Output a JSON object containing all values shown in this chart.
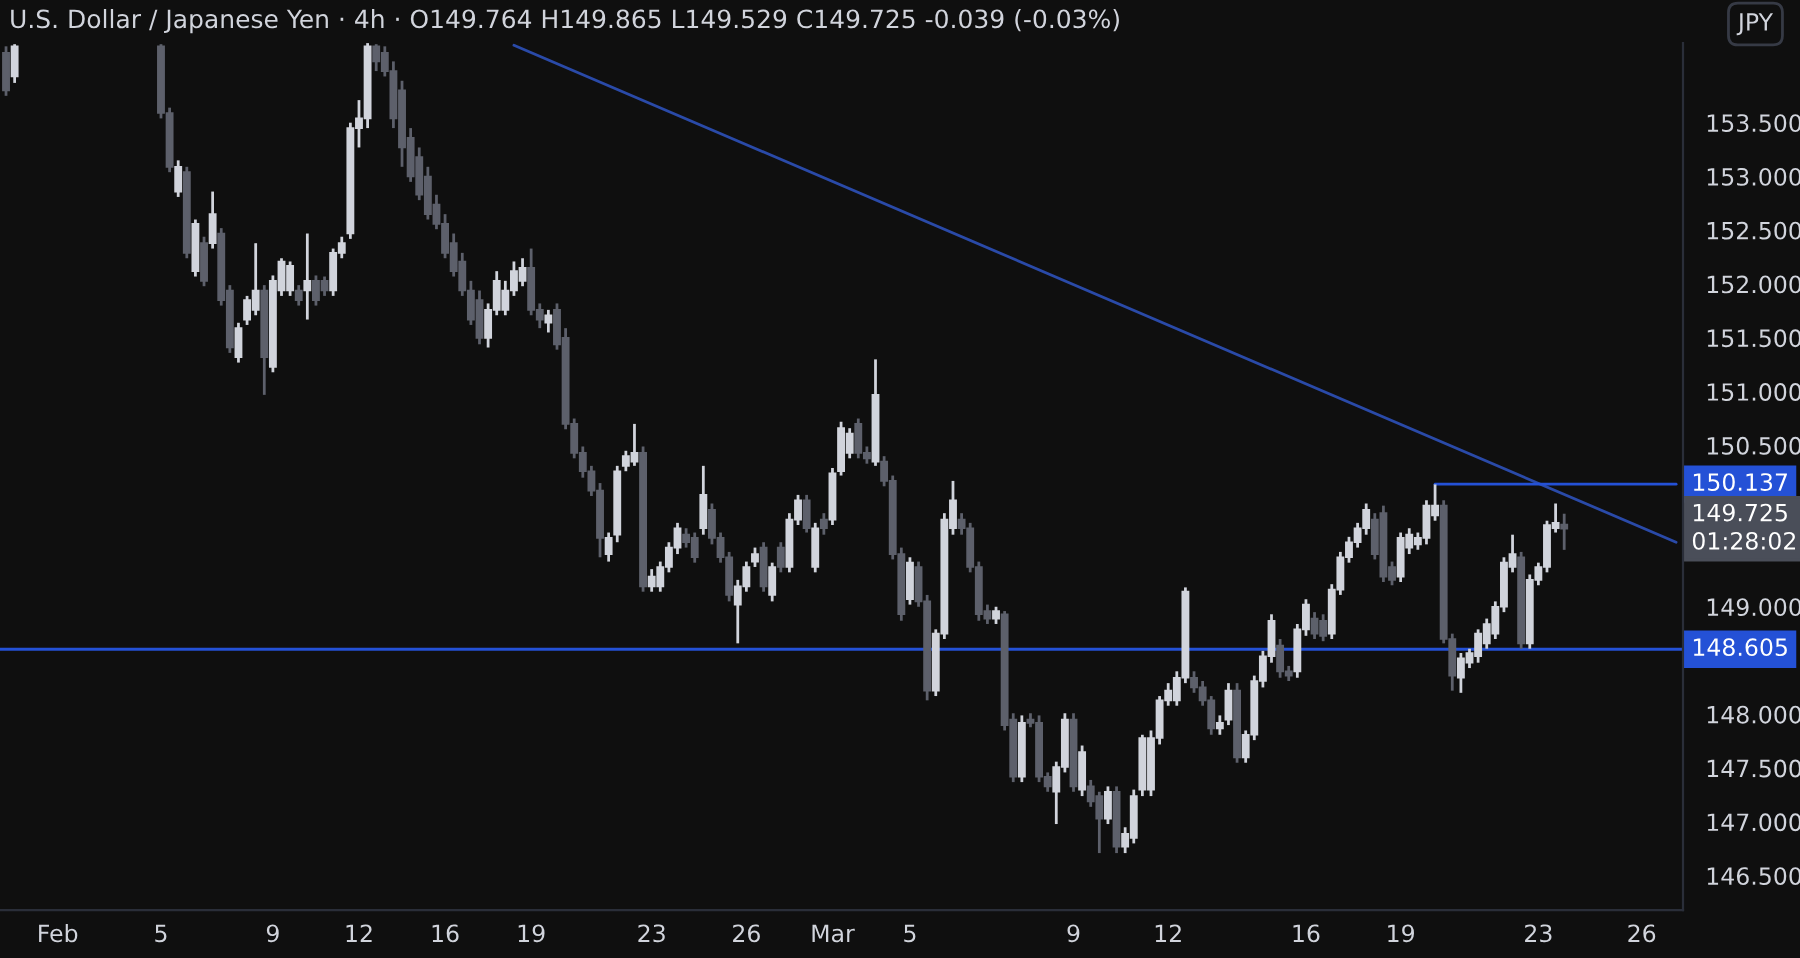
{
  "chart_data": {
    "type": "candlestick",
    "title": "U.S. Dollar / Japanese Yen · 4h · O149.764 H149.865 L149.529 C149.725 -0.039 (-0.03%)",
    "categories": [
      null,
      null,
      null,
      null,
      null,
      null,
      "Feb",
      null,
      null,
      null,
      null,
      null,
      null,
      null,
      null,
      null,
      null,
      null,
      "5",
      null,
      null,
      null,
      null,
      null,
      null,
      null,
      null,
      null,
      null,
      null,
      null,
      "9",
      null,
      null,
      null,
      null,
      null,
      null,
      null,
      null,
      null,
      "12",
      null,
      null,
      null,
      null,
      null,
      null,
      null,
      null,
      null,
      "16",
      null,
      null,
      null,
      null,
      null,
      null,
      null,
      null,
      null,
      "19",
      null,
      null,
      null,
      null,
      null,
      null,
      null,
      null,
      null,
      null,
      null,
      null,
      null,
      "23",
      null,
      null,
      null,
      null,
      null,
      null,
      null,
      null,
      null,
      null,
      "26",
      null,
      null,
      null,
      null,
      null,
      null,
      null,
      null,
      null,
      "Mar",
      null,
      null,
      null,
      null,
      null,
      null,
      null,
      null,
      "5",
      null,
      null,
      null,
      null,
      null,
      null,
      null,
      null,
      null,
      null,
      null,
      null,
      null,
      null,
      null,
      null,
      null,
      null,
      "9",
      null,
      null,
      null,
      null,
      null,
      null,
      null,
      null,
      null,
      null,
      "12",
      null,
      null,
      null,
      null,
      null,
      null,
      null,
      null,
      null,
      null,
      null,
      null,
      null,
      null,
      null,
      "16",
      null,
      null,
      null,
      null,
      null,
      null,
      null,
      null,
      null,
      null,
      "19",
      null,
      null,
      null,
      null,
      null,
      null,
      null,
      null,
      null,
      null,
      null,
      null,
      null,
      null,
      null,
      "23",
      null,
      null,
      null,
      null,
      null,
      null,
      null,
      null,
      null,
      null,
      null,
      "26",
      null,
      null,
      null,
      null
    ],
    "ohlc": [
      [
        154.15,
        154.21,
        153.75,
        153.8
      ],
      [
        153.93,
        154.23,
        153.87,
        154.21
      ],
      null,
      null,
      null,
      null,
      null,
      null,
      null,
      null,
      null,
      null,
      null,
      null,
      null,
      null,
      null,
      null,
      [
        154.21,
        154.23,
        153.54,
        153.59
      ],
      [
        153.59,
        153.64,
        153.04,
        153.09
      ],
      [
        152.86,
        153.15,
        152.81,
        153.09
      ],
      [
        153.04,
        153.09,
        152.24,
        152.29
      ],
      [
        152.12,
        152.6,
        152.07,
        152.56
      ],
      [
        152.38,
        152.44,
        151.98,
        152.03
      ],
      [
        152.38,
        152.86,
        152.33,
        152.65
      ],
      [
        152.47,
        152.52,
        151.8,
        151.85
      ],
      [
        151.94,
        151.99,
        151.36,
        151.41
      ],
      [
        151.32,
        151.64,
        151.27,
        151.59
      ],
      [
        151.67,
        151.89,
        151.62,
        151.85
      ],
      [
        151.76,
        152.38,
        151.71,
        151.94
      ],
      [
        151.94,
        151.99,
        150.97,
        151.32
      ],
      [
        151.23,
        152.08,
        151.18,
        152.03
      ],
      [
        151.94,
        152.24,
        151.89,
        152.21
      ],
      [
        151.94,
        152.21,
        151.89,
        152.17
      ],
      [
        151.94,
        151.99,
        151.8,
        151.85
      ],
      [
        151.94,
        152.47,
        151.67,
        152.03
      ],
      [
        152.03,
        152.08,
        151.8,
        151.85
      ],
      [
        152.03,
        152.07,
        151.89,
        151.94
      ],
      [
        151.94,
        152.33,
        151.89,
        152.29
      ],
      [
        152.29,
        152.44,
        152.24,
        152.38
      ],
      [
        152.47,
        153.5,
        152.42,
        153.45
      ],
      [
        153.45,
        153.71,
        153.27,
        153.54
      ],
      [
        153.54,
        154.24,
        153.45,
        154.21
      ],
      [
        154.21,
        154.23,
        153.98,
        154.07
      ],
      [
        154.15,
        154.21,
        153.93,
        153.98
      ],
      [
        153.98,
        154.07,
        153.45,
        153.54
      ],
      [
        153.8,
        153.89,
        153.09,
        153.27
      ],
      [
        153.36,
        153.45,
        152.95,
        153.0
      ],
      [
        153.18,
        153.27,
        152.78,
        152.83
      ],
      [
        153.0,
        153.09,
        152.6,
        152.65
      ],
      [
        152.74,
        152.83,
        152.51,
        152.56
      ],
      [
        152.56,
        152.65,
        152.24,
        152.29
      ],
      [
        152.38,
        152.47,
        152.07,
        152.12
      ],
      [
        152.21,
        152.29,
        151.89,
        151.94
      ],
      [
        151.94,
        152.03,
        151.62,
        151.67
      ],
      [
        151.85,
        151.94,
        151.44,
        151.5
      ],
      [
        151.5,
        151.82,
        151.41,
        151.76
      ],
      [
        151.76,
        152.12,
        151.71,
        152.03
      ],
      [
        151.76,
        152.03,
        151.71,
        151.94
      ],
      [
        151.94,
        152.21,
        151.89,
        152.12
      ],
      [
        152.03,
        152.24,
        151.98,
        152.15
      ],
      [
        152.15,
        152.33,
        151.71,
        151.76
      ],
      [
        151.76,
        151.82,
        151.59,
        151.67
      ],
      [
        151.64,
        151.76,
        151.55,
        151.71
      ],
      [
        151.76,
        151.82,
        151.39,
        151.44
      ],
      [
        151.5,
        151.59,
        150.65,
        150.7
      ],
      [
        150.7,
        150.75,
        150.38,
        150.43
      ],
      [
        150.43,
        150.49,
        150.2,
        150.26
      ],
      [
        150.26,
        150.31,
        150.03,
        150.08
      ],
      [
        150.08,
        150.15,
        149.46,
        149.64
      ],
      [
        149.49,
        149.69,
        149.42,
        149.64
      ],
      [
        149.67,
        150.31,
        149.6,
        150.26
      ],
      [
        150.31,
        150.45,
        150.26,
        150.4
      ],
      [
        150.35,
        150.7,
        150.31,
        150.43
      ],
      [
        150.43,
        150.49,
        149.14,
        149.19
      ],
      [
        149.19,
        149.35,
        149.14,
        149.28
      ],
      [
        149.19,
        149.42,
        149.14,
        149.37
      ],
      [
        149.37,
        149.6,
        149.32,
        149.55
      ],
      [
        149.55,
        149.78,
        149.49,
        149.73
      ],
      [
        149.67,
        149.73,
        149.55,
        149.6
      ],
      [
        149.64,
        149.69,
        149.41,
        149.46
      ],
      [
        149.73,
        150.31,
        149.67,
        150.04
      ],
      [
        149.9,
        149.96,
        149.58,
        149.64
      ],
      [
        149.64,
        149.69,
        149.41,
        149.46
      ],
      [
        149.46,
        149.51,
        149.05,
        149.11
      ],
      [
        149.02,
        149.25,
        148.66,
        149.19
      ],
      [
        149.19,
        149.42,
        149.14,
        149.37
      ],
      [
        149.42,
        149.55,
        149.37,
        149.49
      ],
      [
        149.55,
        149.6,
        149.14,
        149.19
      ],
      [
        149.11,
        149.41,
        149.05,
        149.37
      ],
      [
        149.55,
        149.6,
        149.32,
        149.37
      ],
      [
        149.37,
        149.87,
        149.32,
        149.81
      ],
      [
        149.81,
        150.04,
        149.76,
        149.99
      ],
      [
        149.99,
        150.04,
        149.69,
        149.73
      ],
      [
        149.37,
        149.78,
        149.32,
        149.73
      ],
      [
        149.81,
        149.87,
        149.67,
        149.73
      ],
      [
        149.81,
        150.29,
        149.76,
        150.24
      ],
      [
        150.26,
        150.72,
        150.22,
        150.66
      ],
      [
        150.43,
        150.66,
        150.38,
        150.61
      ],
      [
        150.7,
        150.75,
        150.38,
        150.43
      ],
      [
        150.43,
        150.49,
        150.33,
        150.38
      ],
      [
        150.35,
        151.3,
        150.31,
        150.97
      ],
      [
        150.35,
        150.4,
        150.12,
        150.17
      ],
      [
        150.17,
        150.22,
        149.44,
        149.49
      ],
      [
        149.49,
        149.55,
        148.87,
        148.93
      ],
      [
        149.07,
        149.46,
        149.02,
        149.41
      ],
      [
        149.37,
        149.42,
        149.0,
        149.05
      ],
      [
        149.05,
        149.11,
        148.13,
        148.22
      ],
      [
        148.22,
        148.79,
        148.17,
        148.75
      ],
      [
        148.75,
        149.87,
        148.7,
        149.81
      ],
      [
        149.73,
        150.17,
        149.67,
        149.99
      ],
      [
        149.81,
        149.87,
        149.67,
        149.73
      ],
      [
        149.73,
        149.78,
        149.32,
        149.37
      ],
      [
        149.37,
        149.42,
        148.87,
        148.93
      ],
      [
        148.96,
        149.02,
        148.84,
        148.89
      ],
      [
        148.89,
        149.0,
        148.84,
        148.96
      ],
      [
        148.93,
        148.96,
        147.85,
        147.9
      ],
      [
        147.95,
        148.01,
        147.37,
        147.42
      ],
      [
        147.42,
        147.99,
        147.37,
        147.92
      ],
      [
        147.95,
        148.01,
        147.88,
        147.92
      ],
      [
        147.92,
        147.99,
        147.37,
        147.42
      ],
      [
        147.42,
        147.46,
        147.28,
        147.33
      ],
      [
        147.28,
        147.56,
        146.98,
        147.51
      ],
      [
        147.51,
        148.01,
        147.46,
        147.95
      ],
      [
        147.95,
        148.01,
        147.28,
        147.33
      ],
      [
        147.3,
        147.71,
        147.24,
        147.65
      ],
      [
        147.33,
        147.39,
        147.14,
        147.19
      ],
      [
        147.24,
        147.28,
        146.71,
        147.03
      ],
      [
        147.03,
        147.33,
        146.98,
        147.28
      ],
      [
        147.28,
        147.33,
        146.71,
        146.77
      ],
      [
        146.77,
        146.95,
        146.71,
        146.89
      ],
      [
        146.85,
        147.3,
        146.8,
        147.24
      ],
      [
        147.3,
        147.81,
        147.24,
        147.78
      ],
      [
        147.3,
        147.85,
        147.24,
        147.78
      ],
      [
        147.78,
        148.17,
        147.72,
        148.13
      ],
      [
        148.13,
        148.29,
        148.08,
        148.22
      ],
      [
        148.13,
        148.4,
        148.08,
        148.34
      ],
      [
        148.34,
        149.18,
        148.29,
        149.14
      ],
      [
        148.34,
        148.4,
        148.2,
        148.25
      ],
      [
        148.25,
        148.31,
        148.08,
        148.13
      ],
      [
        148.13,
        148.17,
        147.81,
        147.87
      ],
      [
        147.87,
        147.99,
        147.81,
        147.92
      ],
      [
        147.95,
        148.29,
        147.9,
        148.22
      ],
      [
        148.22,
        148.29,
        147.55,
        147.6
      ],
      [
        147.6,
        147.85,
        147.55,
        147.81
      ],
      [
        147.81,
        148.36,
        147.76,
        148.31
      ],
      [
        148.31,
        148.59,
        148.25,
        148.54
      ],
      [
        148.54,
        148.93,
        148.48,
        148.87
      ],
      [
        148.64,
        148.7,
        148.34,
        148.4
      ],
      [
        148.4,
        148.45,
        148.31,
        148.36
      ],
      [
        148.4,
        148.84,
        148.34,
        148.79
      ],
      [
        148.79,
        149.07,
        148.73,
        149.02
      ],
      [
        148.89,
        148.95,
        148.7,
        148.75
      ],
      [
        148.87,
        148.93,
        148.68,
        148.73
      ],
      [
        148.75,
        149.21,
        148.7,
        149.16
      ],
      [
        149.16,
        149.51,
        149.11,
        149.46
      ],
      [
        149.46,
        149.65,
        149.41,
        149.6
      ],
      [
        149.6,
        149.78,
        149.55,
        149.73
      ],
      [
        149.73,
        149.96,
        149.67,
        149.9
      ],
      [
        149.81,
        149.87,
        149.44,
        149.49
      ],
      [
        149.87,
        149.94,
        149.23,
        149.28
      ],
      [
        149.37,
        149.42,
        149.2,
        149.25
      ],
      [
        149.28,
        149.69,
        149.23,
        149.64
      ],
      [
        149.55,
        149.73,
        149.49,
        149.67
      ],
      [
        149.58,
        149.69,
        149.53,
        149.64
      ],
      [
        149.64,
        149.99,
        149.58,
        149.94
      ],
      [
        149.85,
        150.137,
        149.8,
        149.94
      ],
      [
        149.94,
        149.99,
        148.66,
        148.7
      ],
      [
        148.7,
        148.75,
        148.22,
        148.36
      ],
      [
        148.34,
        148.57,
        148.2,
        148.52
      ],
      [
        148.48,
        148.61,
        148.43,
        148.57
      ],
      [
        148.54,
        148.79,
        148.48,
        148.75
      ],
      [
        148.66,
        148.89,
        148.61,
        148.84
      ],
      [
        148.75,
        149.05,
        148.7,
        149.0
      ],
      [
        149.0,
        149.46,
        148.95,
        149.41
      ],
      [
        149.37,
        149.67,
        149.32,
        149.49
      ],
      [
        149.46,
        149.51,
        148.61,
        148.66
      ],
      [
        148.66,
        149.3,
        148.61,
        149.25
      ],
      [
        149.25,
        149.41,
        149.2,
        149.37
      ],
      [
        149.37,
        149.8,
        149.32,
        149.76
      ],
      [
        149.73,
        149.96,
        149.69,
        149.78
      ],
      [
        149.764,
        149.865,
        149.529,
        149.725
      ],
      null,
      null,
      null,
      null,
      null,
      null,
      null,
      null,
      null,
      null,
      null,
      null,
      null
    ],
    "colors": [
      "#5d606b",
      "#d1d4dc",
      null,
      null,
      null,
      null,
      null,
      null,
      null,
      null,
      null,
      null,
      null,
      null,
      null,
      null,
      null,
      null,
      "#5d606b",
      "#5d606b",
      "#d1d4dc",
      "#5d606b",
      "#d1d4dc",
      "#5d606b",
      "#d1d4dc",
      "#5d606b",
      "#5d606b",
      "#d1d4dc",
      "#d1d4dc",
      "#d1d4dc",
      "#5d606b",
      "#d1d4dc",
      "#d1d4dc",
      "#d1d4dc",
      "#5d606b",
      "#d1d4dc",
      "#5d606b",
      "#5d606b",
      "#d1d4dc",
      "#d1d4dc",
      "#d1d4dc",
      "#d1d4dc",
      "#d1d4dc",
      "#5d606b",
      "#5d606b",
      "#5d606b",
      "#5d606b",
      "#5d606b",
      "#5d606b",
      "#5d606b",
      "#5d606b",
      "#5d606b",
      "#5d606b",
      "#5d606b",
      "#5d606b",
      "#5d606b",
      "#d1d4dc",
      "#d1d4dc",
      "#d1d4dc",
      "#d1d4dc",
      "#d1d4dc",
      "#5d606b",
      "#5d606b",
      "#d1d4dc",
      "#5d606b",
      "#5d606b",
      "#5d606b",
      "#5d606b",
      "#5d606b",
      "#5d606b",
      "#d1d4dc",
      "#d1d4dc",
      "#d1d4dc",
      "#d1d4dc",
      "#5d606b",
      "#d1d4dc",
      "#d1d4dc",
      "#d1d4dc",
      "#d1d4dc",
      "#5d606b",
      "#5d606b",
      "#d1d4dc",
      "#5d606b",
      "#5d606b",
      "#5d606b",
      "#d1d4dc",
      "#d1d4dc",
      "#d1d4dc",
      "#5d606b",
      "#d1d4dc",
      "#5d606b",
      "#d1d4dc",
      "#d1d4dc",
      "#5d606b",
      "#d1d4dc",
      "#5d606b",
      "#d1d4dc",
      "#d1d4dc",
      "#d1d4dc",
      "#5d606b",
      "#5d606b",
      "#d1d4dc",
      "#5d606b",
      "#5d606b",
      "#5d606b",
      "#d1d4dc",
      "#5d606b",
      "#5d606b",
      "#d1d4dc",
      "#d1d4dc",
      "#d1d4dc",
      "#5d606b",
      "#5d606b",
      "#5d606b",
      "#5d606b",
      "#d1d4dc",
      "#5d606b",
      "#5d606b",
      "#d1d4dc",
      "#5d606b",
      "#5d606b",
      "#5d606b",
      "#d1d4dc",
      "#d1d4dc",
      "#5d606b",
      "#d1d4dc",
      "#5d606b",
      "#5d606b",
      "#d1d4dc",
      "#5d606b",
      "#d1d4dc",
      "#d1d4dc",
      "#d1d4dc",
      "#d1d4dc",
      "#d1d4dc",
      "#d1d4dc",
      "#d1d4dc",
      "#d1d4dc",
      "#5d606b",
      "#5d606b",
      "#5d606b",
      "#d1d4dc",
      "#d1d4dc",
      "#5d606b",
      "#d1d4dc",
      "#d1d4dc",
      "#d1d4dc",
      "#d1d4dc",
      "#5d606b",
      "#5d606b",
      "#d1d4dc",
      "#d1d4dc",
      "#5d606b",
      "#5d606b",
      "#d1d4dc",
      "#d1d4dc",
      "#d1d4dc",
      "#d1d4dc",
      "#d1d4dc",
      "#5d606b",
      "#5d606b",
      "#5d606b",
      "#d1d4dc",
      "#d1d4dc",
      "#d1d4dc",
      "#d1d4dc",
      "#d1d4dc",
      "#5d606b",
      "#5d606b",
      "#d1d4dc",
      "#d1d4dc",
      "#d1d4dc",
      "#d1d4dc",
      "#d1d4dc",
      "#d1d4dc",
      "#d1d4dc",
      "#5d606b",
      "#d1d4dc",
      "#d1d4dc",
      "#d1d4dc",
      "#d1d4dc",
      "#5d606b",
      null,
      null,
      null,
      null,
      null,
      null,
      null,
      null,
      null,
      null,
      null,
      null,
      null
    ],
    "series": [
      {
        "type": "line",
        "color": "#2a4aa8",
        "values": [
          null,
          null,
          null,
          null,
          null,
          null,
          null,
          null,
          null,
          null,
          null,
          null,
          null,
          null,
          null,
          null,
          null,
          null,
          null,
          null,
          null,
          null,
          null,
          null,
          null,
          null,
          null,
          null,
          null,
          null,
          null,
          null,
          null,
          null,
          null,
          null,
          null,
          null,
          null,
          null,
          null,
          null,
          null,
          null,
          null,
          null,
          null,
          null,
          null,
          null,
          null,
          null,
          null,
          null,
          null,
          null,
          null,
          null,
          null,
          154.22,
          null,
          null,
          null,
          null,
          null,
          null,
          null,
          null,
          null,
          null,
          null,
          null,
          null,
          null,
          null,
          null,
          null,
          null,
          null,
          null,
          null,
          null,
          null,
          null,
          null,
          null,
          null,
          null,
          null,
          null,
          null,
          null,
          null,
          null,
          null,
          null,
          null,
          null,
          null,
          null,
          null,
          null,
          null,
          null,
          null,
          null,
          null,
          null,
          null,
          null,
          null,
          null,
          null,
          null,
          null,
          null,
          null,
          null,
          null,
          null,
          null,
          null,
          null,
          null,
          null,
          null,
          null,
          null,
          null,
          null,
          null,
          null,
          null,
          null,
          null,
          null,
          null,
          null,
          null,
          null,
          null,
          null,
          null,
          null,
          null,
          null,
          null,
          null,
          null,
          null,
          null,
          null,
          null,
          null,
          null,
          null,
          null,
          null,
          null,
          null,
          null,
          null,
          null,
          null,
          null,
          null,
          null,
          null,
          null,
          null,
          null,
          null,
          null,
          null,
          null,
          null,
          null,
          null,
          null,
          null,
          null,
          null,
          null,
          null,
          null,
          null,
          null,
          null,
          null,
          null,
          null,
          null,
          null,
          null,
          149.6
        ]
      },
      {
        "type": "line",
        "name": "150.137",
        "color": "#2451d6",
        "values": [
          null,
          null,
          null,
          null,
          null,
          null,
          null,
          null,
          null,
          null,
          null,
          null,
          null,
          null,
          null,
          null,
          null,
          null,
          null,
          null,
          null,
          null,
          null,
          null,
          null,
          null,
          null,
          null,
          null,
          null,
          null,
          null,
          null,
          null,
          null,
          null,
          null,
          null,
          null,
          null,
          null,
          null,
          null,
          null,
          null,
          null,
          null,
          null,
          null,
          null,
          null,
          null,
          null,
          null,
          null,
          null,
          null,
          null,
          null,
          null,
          null,
          null,
          null,
          null,
          null,
          null,
          null,
          null,
          null,
          null,
          null,
          null,
          null,
          null,
          null,
          null,
          null,
          null,
          null,
          null,
          null,
          null,
          null,
          null,
          null,
          null,
          null,
          null,
          null,
          null,
          null,
          null,
          null,
          null,
          null,
          null,
          null,
          null,
          null,
          null,
          null,
          null,
          null,
          null,
          null,
          null,
          null,
          null,
          null,
          null,
          null,
          null,
          null,
          null,
          null,
          null,
          null,
          null,
          null,
          null,
          null,
          null,
          null,
          null,
          null,
          null,
          null,
          null,
          null,
          null,
          null,
          null,
          null,
          null,
          null,
          null,
          null,
          null,
          null,
          null,
          null,
          null,
          null,
          null,
          null,
          null,
          null,
          null,
          null,
          null,
          null,
          null,
          null,
          null,
          null,
          null,
          null,
          null,
          null,
          null,
          null,
          null,
          null,
          null,
          null,
          null,
          150.14,
          null,
          null,
          null,
          null,
          null,
          null,
          null,
          null,
          null,
          null,
          null,
          null,
          null,
          null,
          null,
          null,
          null,
          null,
          null,
          null,
          null,
          null,
          null,
          null,
          null,
          null,
          null,
          150.14
        ]
      }
    ],
    "ref_lines": [
      {
        "axis": "y",
        "value": 148.605,
        "label": "148.605",
        "color": "#2451d6"
      }
    ],
    "annotations": [
      "JPY",
      "149.725\n01:28:02"
    ],
    "ylim": [
      146.18,
      154.24
    ],
    "yticks": [
      {
        "value": 146.5,
        "label": "146.500"
      },
      {
        "value": 147,
        "label": "147.000"
      },
      {
        "value": 147.5,
        "label": "147.500"
      },
      {
        "value": 148,
        "label": "148.000"
      },
      {
        "value": 149,
        "label": "149.000"
      },
      {
        "value": 150.5,
        "label": "150.500"
      },
      {
        "value": 151,
        "label": "151.000"
      },
      {
        "value": 151.5,
        "label": "151.500"
      },
      {
        "value": 152,
        "label": "152.000"
      },
      {
        "value": 152.5,
        "label": "152.500"
      },
      {
        "value": 153,
        "label": "153.000"
      },
      {
        "value": 153.5,
        "label": "153.500"
      }
    ],
    "legend": false
  }
}
